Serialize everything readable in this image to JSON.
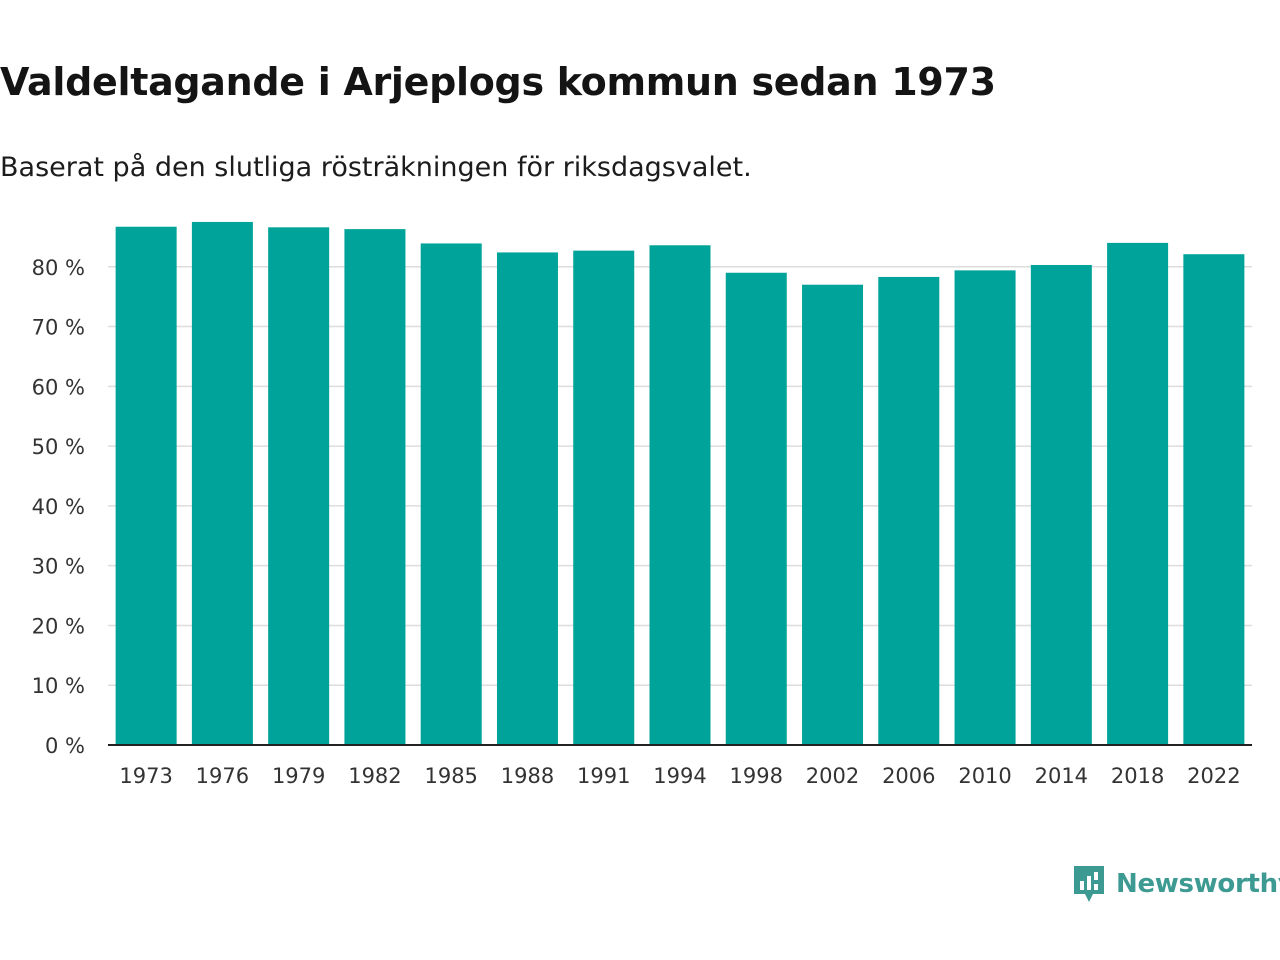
{
  "title": "Valdeltagande i Arjeplogs kommun sedan 1973",
  "subtitle": "Baserat på den slutliga rösträkningen för riksdagsvalet.",
  "brand": {
    "name": "Newsworthy",
    "icon": "newsworthy-logo-icon",
    "color": "#3d9a92"
  },
  "chart_data": {
    "type": "bar",
    "title": "Valdeltagande i Arjeplogs kommun sedan 1973",
    "subtitle": "Baserat på den slutliga rösträkningen för riksdagsvalet.",
    "xlabel": "",
    "ylabel": "",
    "categories": [
      "1973",
      "1976",
      "1979",
      "1982",
      "1985",
      "1988",
      "1991",
      "1994",
      "1998",
      "2002",
      "2006",
      "2010",
      "2014",
      "2018",
      "2022"
    ],
    "values": [
      86.7,
      87.5,
      86.6,
      86.3,
      83.9,
      82.4,
      82.7,
      83.6,
      79.0,
      77.0,
      78.3,
      79.4,
      80.3,
      84.0,
      82.1
    ],
    "ylim": [
      0,
      90
    ],
    "yticks": [
      0,
      10,
      20,
      30,
      40,
      50,
      60,
      70,
      80
    ],
    "ytick_labels": [
      "0 %",
      "10 %",
      "20 %",
      "30 %",
      "40 %",
      "50 %",
      "60 %",
      "70 %",
      "80 %"
    ],
    "grid": true,
    "bar_color": "#00a39a",
    "grid_color": "#dddddd",
    "axis_color": "#222222"
  }
}
